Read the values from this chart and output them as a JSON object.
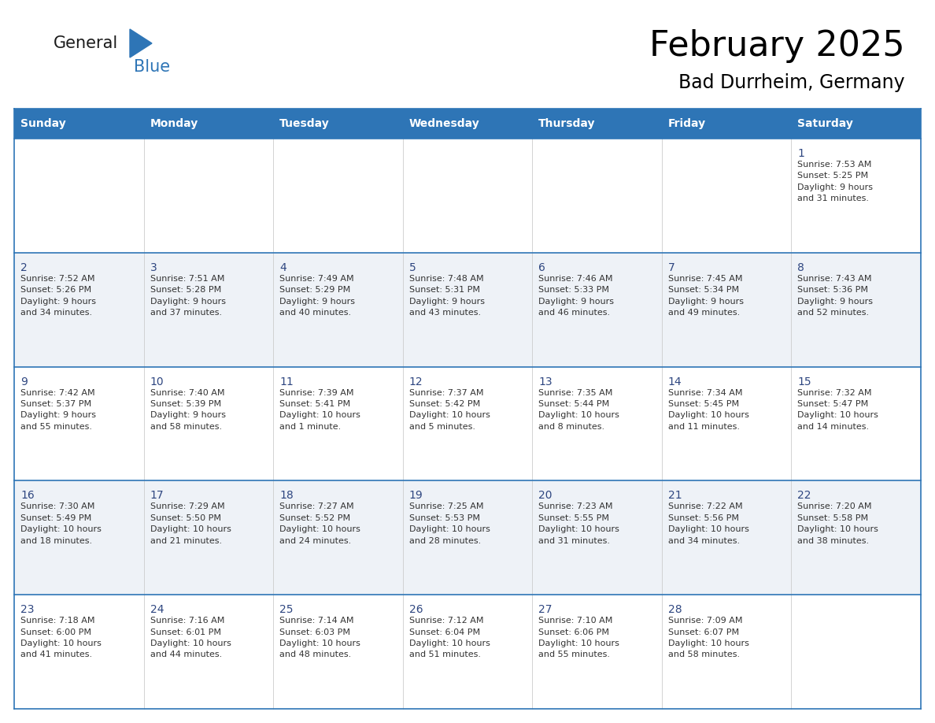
{
  "title": "February 2025",
  "subtitle": "Bad Durrheim, Germany",
  "header_bg": "#2E75B6",
  "header_text": "#FFFFFF",
  "row_bg_even": "#FFFFFF",
  "row_bg_odd": "#EEF2F7",
  "day_number_color": "#2E4680",
  "text_color": "#333333",
  "grid_color": "#2E75B6",
  "days_of_week": [
    "Sunday",
    "Monday",
    "Tuesday",
    "Wednesday",
    "Thursday",
    "Friday",
    "Saturday"
  ],
  "weeks": [
    [
      {
        "day": null,
        "info": null
      },
      {
        "day": null,
        "info": null
      },
      {
        "day": null,
        "info": null
      },
      {
        "day": null,
        "info": null
      },
      {
        "day": null,
        "info": null
      },
      {
        "day": null,
        "info": null
      },
      {
        "day": 1,
        "info": "Sunrise: 7:53 AM\nSunset: 5:25 PM\nDaylight: 9 hours\nand 31 minutes."
      }
    ],
    [
      {
        "day": 2,
        "info": "Sunrise: 7:52 AM\nSunset: 5:26 PM\nDaylight: 9 hours\nand 34 minutes."
      },
      {
        "day": 3,
        "info": "Sunrise: 7:51 AM\nSunset: 5:28 PM\nDaylight: 9 hours\nand 37 minutes."
      },
      {
        "day": 4,
        "info": "Sunrise: 7:49 AM\nSunset: 5:29 PM\nDaylight: 9 hours\nand 40 minutes."
      },
      {
        "day": 5,
        "info": "Sunrise: 7:48 AM\nSunset: 5:31 PM\nDaylight: 9 hours\nand 43 minutes."
      },
      {
        "day": 6,
        "info": "Sunrise: 7:46 AM\nSunset: 5:33 PM\nDaylight: 9 hours\nand 46 minutes."
      },
      {
        "day": 7,
        "info": "Sunrise: 7:45 AM\nSunset: 5:34 PM\nDaylight: 9 hours\nand 49 minutes."
      },
      {
        "day": 8,
        "info": "Sunrise: 7:43 AM\nSunset: 5:36 PM\nDaylight: 9 hours\nand 52 minutes."
      }
    ],
    [
      {
        "day": 9,
        "info": "Sunrise: 7:42 AM\nSunset: 5:37 PM\nDaylight: 9 hours\nand 55 minutes."
      },
      {
        "day": 10,
        "info": "Sunrise: 7:40 AM\nSunset: 5:39 PM\nDaylight: 9 hours\nand 58 minutes."
      },
      {
        "day": 11,
        "info": "Sunrise: 7:39 AM\nSunset: 5:41 PM\nDaylight: 10 hours\nand 1 minute."
      },
      {
        "day": 12,
        "info": "Sunrise: 7:37 AM\nSunset: 5:42 PM\nDaylight: 10 hours\nand 5 minutes."
      },
      {
        "day": 13,
        "info": "Sunrise: 7:35 AM\nSunset: 5:44 PM\nDaylight: 10 hours\nand 8 minutes."
      },
      {
        "day": 14,
        "info": "Sunrise: 7:34 AM\nSunset: 5:45 PM\nDaylight: 10 hours\nand 11 minutes."
      },
      {
        "day": 15,
        "info": "Sunrise: 7:32 AM\nSunset: 5:47 PM\nDaylight: 10 hours\nand 14 minutes."
      }
    ],
    [
      {
        "day": 16,
        "info": "Sunrise: 7:30 AM\nSunset: 5:49 PM\nDaylight: 10 hours\nand 18 minutes."
      },
      {
        "day": 17,
        "info": "Sunrise: 7:29 AM\nSunset: 5:50 PM\nDaylight: 10 hours\nand 21 minutes."
      },
      {
        "day": 18,
        "info": "Sunrise: 7:27 AM\nSunset: 5:52 PM\nDaylight: 10 hours\nand 24 minutes."
      },
      {
        "day": 19,
        "info": "Sunrise: 7:25 AM\nSunset: 5:53 PM\nDaylight: 10 hours\nand 28 minutes."
      },
      {
        "day": 20,
        "info": "Sunrise: 7:23 AM\nSunset: 5:55 PM\nDaylight: 10 hours\nand 31 minutes."
      },
      {
        "day": 21,
        "info": "Sunrise: 7:22 AM\nSunset: 5:56 PM\nDaylight: 10 hours\nand 34 minutes."
      },
      {
        "day": 22,
        "info": "Sunrise: 7:20 AM\nSunset: 5:58 PM\nDaylight: 10 hours\nand 38 minutes."
      }
    ],
    [
      {
        "day": 23,
        "info": "Sunrise: 7:18 AM\nSunset: 6:00 PM\nDaylight: 10 hours\nand 41 minutes."
      },
      {
        "day": 24,
        "info": "Sunrise: 7:16 AM\nSunset: 6:01 PM\nDaylight: 10 hours\nand 44 minutes."
      },
      {
        "day": 25,
        "info": "Sunrise: 7:14 AM\nSunset: 6:03 PM\nDaylight: 10 hours\nand 48 minutes."
      },
      {
        "day": 26,
        "info": "Sunrise: 7:12 AM\nSunset: 6:04 PM\nDaylight: 10 hours\nand 51 minutes."
      },
      {
        "day": 27,
        "info": "Sunrise: 7:10 AM\nSunset: 6:06 PM\nDaylight: 10 hours\nand 55 minutes."
      },
      {
        "day": 28,
        "info": "Sunrise: 7:09 AM\nSunset: 6:07 PM\nDaylight: 10 hours\nand 58 minutes."
      },
      {
        "day": null,
        "info": null
      }
    ]
  ]
}
